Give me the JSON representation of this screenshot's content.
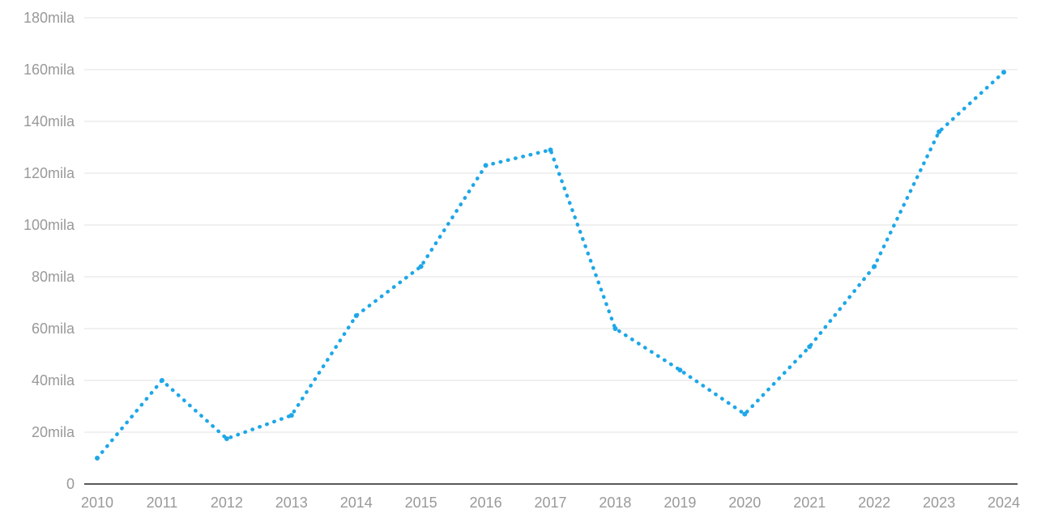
{
  "chart_data": {
    "type": "line",
    "x": [
      "2010",
      "2011",
      "2012",
      "2013",
      "2014",
      "2015",
      "2016",
      "2017",
      "2018",
      "2019",
      "2020",
      "2021",
      "2022",
      "2023",
      "2024"
    ],
    "series": [
      {
        "values": [
          10000,
          40000,
          17500,
          26500,
          65000,
          84000,
          123000,
          129000,
          60000,
          44000,
          27000,
          53000,
          84000,
          136000,
          159000
        ],
        "color": "#1ea7e8"
      }
    ],
    "ylim": [
      0,
      180000
    ],
    "yticks": [
      0,
      20000,
      40000,
      60000,
      80000,
      100000,
      120000,
      140000,
      160000,
      180000
    ],
    "ytick_labels": [
      "0",
      "20mila",
      "40mila",
      "60mila",
      "80mila",
      "100mila",
      "120mila",
      "140mila",
      "160mila",
      "180mila"
    ],
    "grid": true,
    "legend": "none",
    "title": "",
    "xlabel": "",
    "ylabel": ""
  }
}
